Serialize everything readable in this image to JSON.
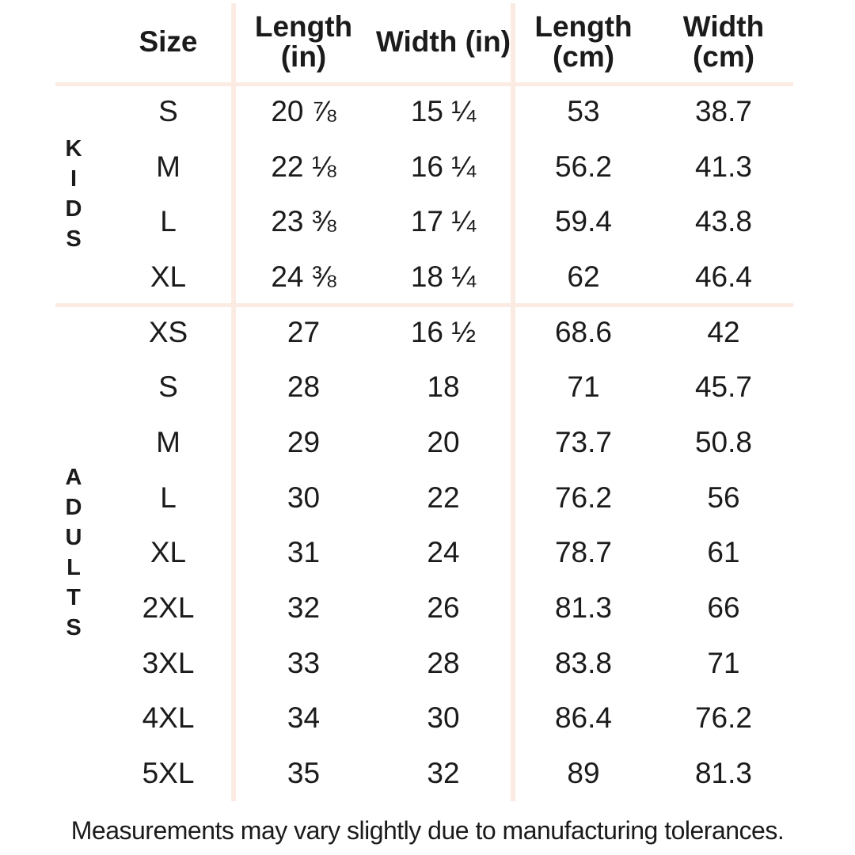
{
  "chart_data": {
    "type": "table",
    "columns": [
      "Size",
      "Length (in)",
      "Width (in)",
      "Length (cm)",
      "Width (cm)"
    ],
    "header": [
      {
        "line1": "Size",
        "line2": ""
      },
      {
        "line1": "Length",
        "line2": "(in)"
      },
      {
        "line1": "Width (in)",
        "line2": ""
      },
      {
        "line1": "Length",
        "line2": "(cm)"
      },
      {
        "line1": "Width",
        "line2": "(cm)"
      }
    ],
    "groups": [
      {
        "label": "KIDS",
        "rows": [
          {
            "size": "S",
            "length_in": "20 ⅞",
            "width_in": "15 ¼",
            "length_cm": "53",
            "width_cm": "38.7"
          },
          {
            "size": "M",
            "length_in": "22 ⅛",
            "width_in": "16 ¼",
            "length_cm": "56.2",
            "width_cm": "41.3"
          },
          {
            "size": "L",
            "length_in": "23 ⅜",
            "width_in": "17 ¼",
            "length_cm": "59.4",
            "width_cm": "43.8"
          },
          {
            "size": "XL",
            "length_in": "24 ⅜",
            "width_in": "18 ¼",
            "length_cm": "62",
            "width_cm": "46.4"
          }
        ]
      },
      {
        "label": "ADULTS",
        "rows": [
          {
            "size": "XS",
            "length_in": "27",
            "width_in": "16 ½",
            "length_cm": "68.6",
            "width_cm": "42"
          },
          {
            "size": "S",
            "length_in": "28",
            "width_in": "18",
            "length_cm": "71",
            "width_cm": "45.7"
          },
          {
            "size": "M",
            "length_in": "29",
            "width_in": "20",
            "length_cm": "73.7",
            "width_cm": "50.8"
          },
          {
            "size": "L",
            "length_in": "30",
            "width_in": "22",
            "length_cm": "76.2",
            "width_cm": "56"
          },
          {
            "size": "XL",
            "length_in": "31",
            "width_in": "24",
            "length_cm": "78.7",
            "width_cm": "61"
          },
          {
            "size": "2XL",
            "length_in": "32",
            "width_in": "26",
            "length_cm": "81.3",
            "width_cm": "66"
          },
          {
            "size": "3XL",
            "length_in": "33",
            "width_in": "28",
            "length_cm": "83.8",
            "width_cm": "71"
          },
          {
            "size": "4XL",
            "length_in": "34",
            "width_in": "30",
            "length_cm": "86.4",
            "width_cm": "76.2"
          },
          {
            "size": "5XL",
            "length_in": "35",
            "width_in": "32",
            "length_cm": "89",
            "width_cm": "81.3"
          }
        ]
      }
    ]
  },
  "footer": {
    "note": "Measurements may vary slightly due to manufacturing tolerances."
  },
  "colors": {
    "background": "#ffffff",
    "line": "#fcebe3",
    "text": "#1b1b1b"
  }
}
